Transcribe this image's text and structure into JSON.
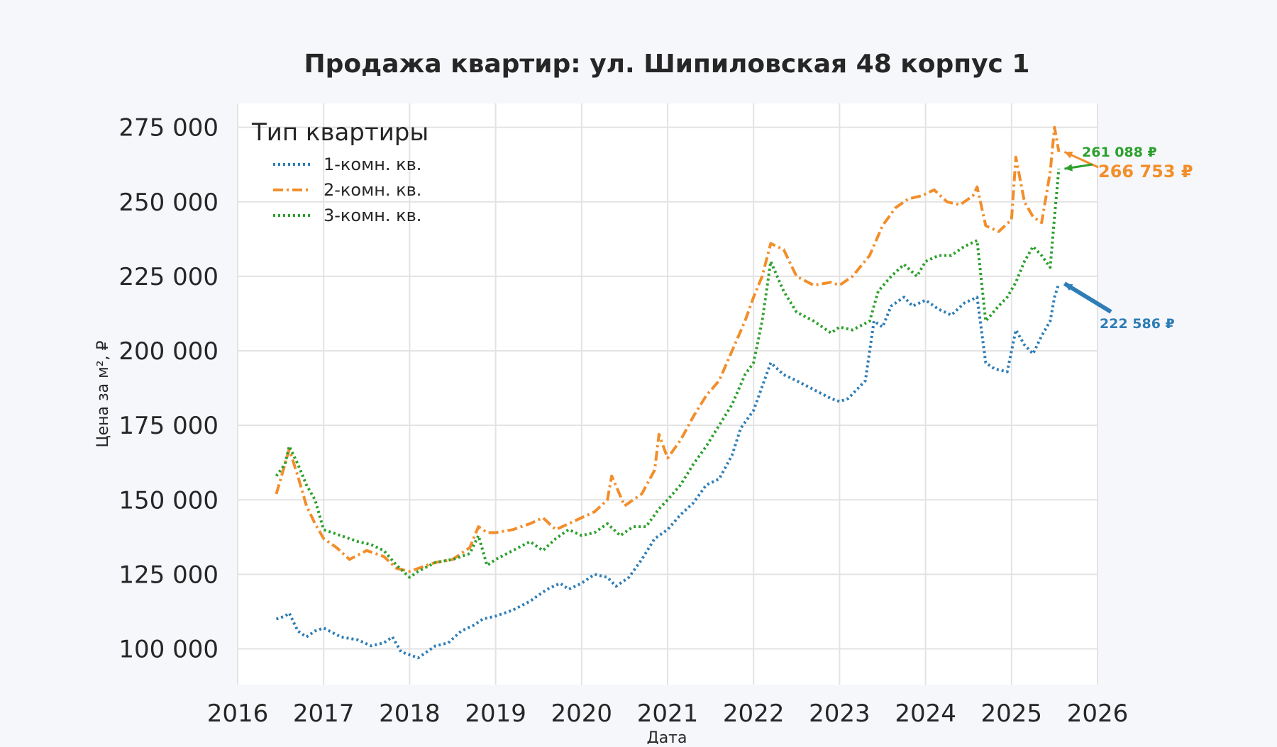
{
  "chart_data": {
    "type": "line",
    "title": "Продажа квартир: ул. Шипиловская 48 корпус 1",
    "xlabel": "Дата",
    "ylabel": "Цена за м², ₽",
    "xlim": [
      2016,
      2026
    ],
    "ylim": [
      88000,
      283000
    ],
    "x_ticks": [
      2016,
      2017,
      2018,
      2019,
      2020,
      2021,
      2022,
      2023,
      2024,
      2025,
      2026
    ],
    "y_ticks": [
      100000,
      125000,
      150000,
      175000,
      200000,
      225000,
      250000,
      275000
    ],
    "y_tick_labels": [
      "100 000",
      "125 000",
      "150 000",
      "175 000",
      "200 000",
      "225 000",
      "250 000",
      "275 000"
    ],
    "grid": true,
    "legend": {
      "title": "Тип квартиры",
      "placement": "top-left"
    },
    "series": [
      {
        "name": "1-комн. кв.",
        "color": "#2e7db6",
        "dash": "dotted",
        "x": [
          2016.45,
          2016.55,
          2016.6,
          2016.7,
          2016.8,
          2016.9,
          2017.0,
          2017.2,
          2017.4,
          2017.55,
          2017.7,
          2017.8,
          2017.9,
          2018.0,
          2018.1,
          2018.3,
          2018.45,
          2018.6,
          2018.75,
          2018.85,
          2019.0,
          2019.2,
          2019.4,
          2019.6,
          2019.75,
          2019.85,
          2020.0,
          2020.15,
          2020.3,
          2020.4,
          2020.55,
          2020.7,
          2020.85,
          2021.0,
          2021.15,
          2021.3,
          2021.45,
          2021.6,
          2021.75,
          2021.85,
          2022.0,
          2022.2,
          2022.35,
          2022.5,
          2022.7,
          2022.9,
          2023.0,
          2023.1,
          2023.3,
          2023.4,
          2023.5,
          2023.6,
          2023.75,
          2023.85,
          2024.0,
          2024.15,
          2024.3,
          2024.45,
          2024.6,
          2024.7,
          2024.8,
          2024.95,
          2025.05,
          2025.15,
          2025.25,
          2025.35,
          2025.45,
          2025.5,
          2025.55
        ],
        "values": [
          110000,
          111000,
          112000,
          106000,
          104000,
          106000,
          107000,
          104000,
          103000,
          101000,
          102000,
          104000,
          99000,
          98000,
          97000,
          101000,
          102000,
          106000,
          108000,
          110000,
          111000,
          113000,
          116000,
          120000,
          122000,
          120000,
          122000,
          125000,
          124000,
          121000,
          124000,
          130000,
          137000,
          140000,
          145000,
          149000,
          155000,
          157000,
          165000,
          174000,
          180000,
          196000,
          192000,
          190000,
          187000,
          184000,
          183000,
          184000,
          190000,
          210000,
          208000,
          215000,
          218000,
          215000,
          217000,
          214000,
          212000,
          216000,
          218000,
          196000,
          194000,
          193000,
          207000,
          202000,
          199000,
          205000,
          210000,
          218000,
          222586
        ],
        "label_value": "222 586 ₽"
      },
      {
        "name": "2-комн. кв.",
        "color": "#f28e2b",
        "dash": "dashdot",
        "x": [
          2016.45,
          2016.55,
          2016.6,
          2016.7,
          2016.8,
          2016.9,
          2017.0,
          2017.15,
          2017.3,
          2017.5,
          2017.7,
          2017.85,
          2018.0,
          2018.1,
          2018.3,
          2018.5,
          2018.7,
          2018.8,
          2018.9,
          2019.0,
          2019.2,
          2019.4,
          2019.55,
          2019.7,
          2019.85,
          2020.0,
          2020.15,
          2020.3,
          2020.35,
          2020.5,
          2020.7,
          2020.85,
          2020.9,
          2021.0,
          2021.15,
          2021.3,
          2021.45,
          2021.6,
          2021.75,
          2021.9,
          2022.0,
          2022.1,
          2022.2,
          2022.35,
          2022.5,
          2022.7,
          2022.9,
          2023.0,
          2023.15,
          2023.35,
          2023.5,
          2023.65,
          2023.8,
          2023.95,
          2024.1,
          2024.25,
          2024.4,
          2024.55,
          2024.6,
          2024.7,
          2024.85,
          2025.0,
          2025.05,
          2025.15,
          2025.25,
          2025.35,
          2025.45,
          2025.5,
          2025.55
        ],
        "values": [
          152000,
          162000,
          167000,
          158000,
          148000,
          142000,
          137000,
          134000,
          130000,
          133000,
          131000,
          127000,
          126000,
          127000,
          129000,
          130000,
          134000,
          141000,
          139000,
          139000,
          140000,
          142000,
          144000,
          140000,
          142000,
          144000,
          146000,
          150000,
          158000,
          148000,
          152000,
          160000,
          172000,
          164000,
          170000,
          178000,
          185000,
          190000,
          200000,
          210000,
          218000,
          225000,
          236000,
          234000,
          225000,
          222000,
          223000,
          222000,
          225000,
          232000,
          242000,
          248000,
          251000,
          252000,
          254000,
          250000,
          249000,
          252000,
          255000,
          242000,
          240000,
          244000,
          265000,
          250000,
          245000,
          243000,
          260000,
          275000,
          266753
        ],
        "label_value": "266 753 ₽"
      },
      {
        "name": "3-комн. кв.",
        "color": "#2ca02c",
        "dash": "dotted",
        "x": [
          2016.45,
          2016.55,
          2016.6,
          2016.7,
          2016.8,
          2016.9,
          2017.0,
          2017.2,
          2017.4,
          2017.55,
          2017.7,
          2017.85,
          2018.0,
          2018.1,
          2018.3,
          2018.5,
          2018.7,
          2018.8,
          2018.9,
          2019.0,
          2019.2,
          2019.4,
          2019.55,
          2019.7,
          2019.85,
          2020.0,
          2020.15,
          2020.3,
          2020.45,
          2020.6,
          2020.75,
          2020.9,
          2021.0,
          2021.15,
          2021.3,
          2021.45,
          2021.6,
          2021.75,
          2021.9,
          2022.0,
          2022.1,
          2022.2,
          2022.35,
          2022.5,
          2022.7,
          2022.9,
          2023.0,
          2023.15,
          2023.35,
          2023.45,
          2023.6,
          2023.75,
          2023.9,
          2024.0,
          2024.15,
          2024.3,
          2024.45,
          2024.6,
          2024.7,
          2024.85,
          2024.95,
          2025.05,
          2025.15,
          2025.25,
          2025.35,
          2025.45,
          2025.5,
          2025.55
        ],
        "values": [
          158000,
          162000,
          168000,
          162000,
          155000,
          150000,
          140000,
          138000,
          136000,
          135000,
          133000,
          128000,
          124000,
          126000,
          129000,
          130000,
          132000,
          138000,
          128000,
          130000,
          133000,
          136000,
          133000,
          137000,
          140000,
          138000,
          139000,
          142000,
          138000,
          141000,
          141000,
          147000,
          150000,
          155000,
          162000,
          168000,
          175000,
          182000,
          192000,
          196000,
          210000,
          230000,
          220000,
          213000,
          210000,
          206000,
          208000,
          207000,
          210000,
          220000,
          225000,
          229000,
          225000,
          230000,
          232000,
          232000,
          235000,
          237000,
          210000,
          215000,
          218000,
          223000,
          230000,
          235000,
          232000,
          228000,
          245000,
          261088
        ],
        "label_value": "261 088 ₽"
      }
    ]
  }
}
